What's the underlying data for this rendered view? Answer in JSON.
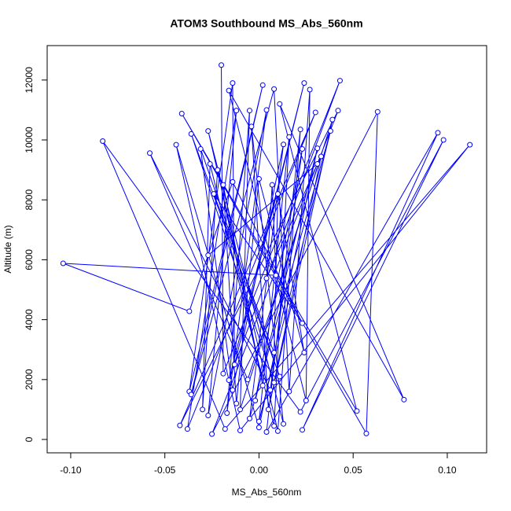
{
  "chart_data": {
    "type": "scatter",
    "title": "ATOM3 Southbound MS_Abs_560nm",
    "x_label": "MS_Abs_560nm",
    "y_label": "Altitude (m)",
    "xlim": [
      -0.1125,
      0.1209
    ],
    "ylim": [
      -446,
      13150
    ],
    "xticks": [
      {
        "value": -0.1,
        "label": "-0.10"
      },
      {
        "value": -0.05,
        "label": "-0.05"
      },
      {
        "value": 0,
        "label": "0.00"
      },
      {
        "value": 0.05,
        "label": "0.05"
      },
      {
        "value": 0.1,
        "label": "0.10"
      }
    ],
    "yticks": [
      0,
      2000,
      4000,
      6000,
      8000,
      10000,
      12000
    ],
    "grid": false,
    "connect": true,
    "series": [
      {
        "color": "#0000ff",
        "x": [
          -0.02,
          -0.019,
          0.043,
          -0.016,
          0.024,
          -0.013,
          -0.014,
          -0.037,
          0.002,
          -0.036,
          0.008,
          0.016,
          0.027,
          0.025,
          -0.016,
          0.077,
          0.011,
          0.052,
          -0.041,
          0.057,
          0.063,
          -0.025,
          0.042,
          -0.042,
          0.03,
          -0.038,
          -0.012,
          -0.027,
          0.004,
          -0.017,
          -0.005,
          -0.01,
          0.039,
          0.005,
          -0.004,
          0.013,
          -0.027,
          0.01,
          0.022,
          0.004,
          0.095,
          0.023,
          0.098,
          0.022,
          -0.083,
          -0.018,
          0.112,
          -0.01,
          -0.044,
          0.0,
          0.031,
          -0.002,
          0.023,
          0.006,
          -0.058,
          -0.006,
          0.033,
          0.008,
          -0.036,
          0.011,
          -0.031,
          -0.014,
          0.013,
          -0.005,
          0.038,
          0.0,
          0.016,
          0.008,
          -0.026,
          -0.03,
          -0.022,
          0.002,
          -0.019,
          -0.012,
          0.0,
          0.024,
          0.01,
          0.008,
          -0.024,
          0.023,
          -0.014,
          -0.037,
          -0.104,
          0.009,
          0.007,
          0.004,
          0.031,
          -0.027
        ],
        "values": [
          12500,
          2200,
          11980,
          1980,
          11900,
          2500,
          11900,
          1600,
          11830,
          1500,
          11700,
          1600,
          11680,
          1300,
          11650,
          1330,
          11200,
          950,
          10880,
          200,
          10940,
          180,
          10980,
          470,
          10920,
          350,
          10980,
          800,
          11000,
          880,
          10980,
          1000,
          10680,
          1000,
          10450,
          520,
          10300,
          280,
          10350,
          250,
          10240,
          320,
          10000,
          920,
          9960,
          350,
          9840,
          300,
          9840,
          400,
          9720,
          1300,
          9700,
          1650,
          9560,
          2000,
          9450,
          1900,
          10200,
          2100,
          9700,
          1650,
          9850,
          700,
          10300,
          600,
          10100,
          450,
          9200,
          1000,
          9000,
          1800,
          8500,
          1200,
          8700,
          2900,
          8200,
          2900,
          8200,
          3880,
          8600,
          4280,
          5880,
          5480,
          8500,
          5380,
          9200,
          6150
        ]
      }
    ]
  }
}
